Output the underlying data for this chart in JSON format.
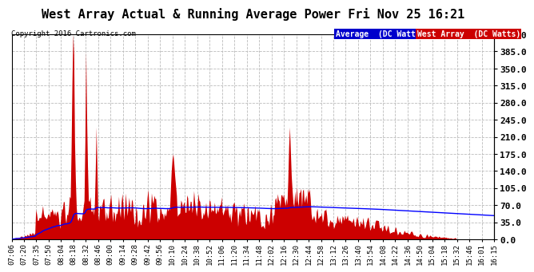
{
  "title": "West Array Actual & Running Average Power Fri Nov 25 16:21",
  "copyright": "Copyright 2016 Cartronics.com",
  "yticks": [
    0.0,
    35.0,
    70.0,
    105.0,
    140.0,
    175.0,
    210.0,
    245.0,
    280.0,
    315.0,
    350.0,
    385.0,
    420.0
  ],
  "ymax": 420.0,
  "ymin": 0.0,
  "legend_avg_label": "Average  (DC Watts)",
  "legend_west_label": "West Array  (DC Watts)",
  "legend_avg_bg": "#0000cc",
  "legend_west_bg": "#cc0000",
  "bar_color": "#cc0000",
  "avg_line_color": "#0000ff",
  "bg_color": "#ffffff",
  "plot_bg_color": "#ffffff",
  "grid_color": "#bbbbbb",
  "title_fontsize": 11,
  "tick_label_fontsize": 6.5,
  "ytick_fontsize": 8,
  "x_labels": [
    "07:06",
    "07:20",
    "07:35",
    "07:50",
    "08:04",
    "08:18",
    "08:32",
    "08:46",
    "09:00",
    "09:14",
    "09:28",
    "09:42",
    "09:56",
    "10:10",
    "10:24",
    "10:38",
    "10:52",
    "11:06",
    "11:20",
    "11:34",
    "11:48",
    "12:02",
    "12:16",
    "12:30",
    "12:44",
    "12:58",
    "13:12",
    "13:26",
    "13:40",
    "13:54",
    "14:08",
    "14:22",
    "14:36",
    "14:50",
    "15:04",
    "15:18",
    "15:32",
    "15:46",
    "16:01",
    "16:15"
  ],
  "num_points": 560
}
